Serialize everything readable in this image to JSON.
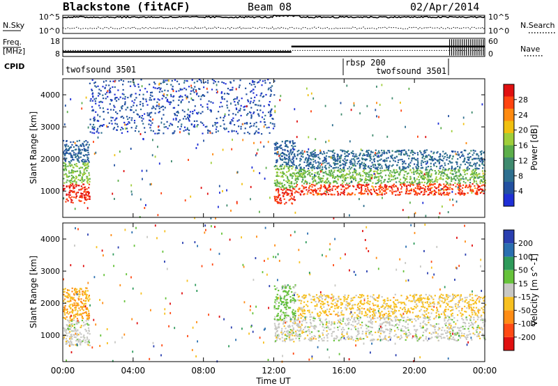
{
  "header": {
    "station": "Blackstone (fitACF)",
    "beam": "Beam 08",
    "date": "02/Apr/2014"
  },
  "left_labels": {
    "nsky": "N.Sky",
    "freq_line1": "Freq.",
    "freq_line2": "[MHz]",
    "cpid": "CPID"
  },
  "right_labels": {
    "nsearch": "N.Search",
    "nave": "Nave"
  },
  "strip_ticks": {
    "noise_left_top": "10^5",
    "noise_left_bottom": "10^0",
    "noise_right_top": "10^5",
    "noise_right_bottom": "10^0",
    "freq_left_top": "18",
    "freq_left_bottom": "8",
    "nave_right_top": "60",
    "nave_right_bottom": "0"
  },
  "cpid_labels": {
    "seg1": "twofsound 3501",
    "seg2": "rbsp 200",
    "seg3": "twofsound 3501"
  },
  "axes": {
    "ylabel": "Slant Range [km]",
    "xlabel": "Time UT",
    "yticks": [
      "1000",
      "2000",
      "3000",
      "4000"
    ],
    "xticks": [
      "00:00",
      "04:00",
      "08:00",
      "12:00",
      "16:00",
      "20:00",
      "00:00"
    ]
  },
  "colorbars": {
    "power": {
      "label": "Power [dB]",
      "ticks": [
        "4",
        "8",
        "12",
        "16",
        "20",
        "24",
        "28"
      ],
      "colors": [
        "#1f2fd6",
        "#2250a0",
        "#2e6f8f",
        "#3f8a6e",
        "#5cae4a",
        "#9fce3a",
        "#f0c010",
        "#ff8a10",
        "#ff4410",
        "#e01010"
      ]
    },
    "velocity": {
      "label": "Velocity [m s^-1]",
      "ticks": [
        "200",
        "100",
        "50",
        "15",
        "-15",
        "-50",
        "-100",
        "-200"
      ],
      "colors": [
        "#2a3fb0",
        "#2a6fb0",
        "#2e9a5a",
        "#66c23a",
        "#c8c8c4",
        "#f7c020",
        "#ff8c14",
        "#ff4a14",
        "#e01010"
      ]
    }
  },
  "chart_data": {
    "type": "heatmap",
    "title": "Blackstone (fitACF)  Beam 08  02/Apr/2014",
    "xlabel": "Time UT",
    "ylabel": "Slant Range [km]",
    "xlim": [
      0,
      24
    ],
    "ylim": [
      180,
      4500
    ],
    "xticks_hours": [
      0,
      4,
      8,
      12,
      16,
      20,
      24
    ],
    "yticks_km": [
      1000,
      2000,
      3000,
      4000
    ],
    "panels": [
      {
        "name": "Power",
        "unit": "dB",
        "range": [
          0,
          30
        ],
        "regions": [
          {
            "t0": 0.0,
            "t1": 1.5,
            "r0": 650,
            "r1": 1250,
            "value": 27
          },
          {
            "t0": 0.0,
            "t1": 1.5,
            "r0": 1250,
            "r1": 1900,
            "value": 15
          },
          {
            "t0": 0.0,
            "t1": 1.5,
            "r0": 1900,
            "r1": 2600,
            "value": 6
          },
          {
            "t0": 12.0,
            "t1": 13.2,
            "r0": 620,
            "r1": 1100,
            "value": 27
          },
          {
            "t0": 12.0,
            "t1": 13.2,
            "r0": 1100,
            "r1": 1800,
            "value": 15
          },
          {
            "t0": 12.0,
            "t1": 13.2,
            "r0": 1800,
            "r1": 2600,
            "value": 6
          },
          {
            "t0": 13.2,
            "t1": 24.0,
            "r0": 900,
            "r1": 1250,
            "value": 26
          },
          {
            "t0": 13.2,
            "t1": 24.0,
            "r0": 1250,
            "r1": 1700,
            "value": 14
          },
          {
            "t0": 13.2,
            "t1": 24.0,
            "r0": 1700,
            "r1": 2300,
            "value": 7
          },
          {
            "t0": 1.5,
            "t1": 12.0,
            "r0": 2800,
            "r1": 4500,
            "value": 4
          }
        ]
      },
      {
        "name": "Velocity",
        "unit": "m s^-1",
        "range": [
          -200,
          200
        ],
        "regions": [
          {
            "t0": 0.0,
            "t1": 1.5,
            "r0": 700,
            "r1": 1500,
            "value": 0
          },
          {
            "t0": 0.0,
            "t1": 1.5,
            "r0": 1500,
            "r1": 2500,
            "value": -60
          },
          {
            "t0": 12.0,
            "t1": 13.2,
            "r0": 800,
            "r1": 1500,
            "value": 0
          },
          {
            "t0": 12.0,
            "t1": 13.2,
            "r0": 1500,
            "r1": 2600,
            "value": 40
          },
          {
            "t0": 13.2,
            "t1": 24.0,
            "r0": 850,
            "r1": 1600,
            "value": 0
          },
          {
            "t0": 13.2,
            "t1": 24.0,
            "r0": 1600,
            "r1": 2300,
            "value": -40
          }
        ]
      }
    ],
    "strips": {
      "noise": {
        "ylim_log10": [
          0,
          5
        ]
      },
      "frequency_mhz": [
        {
          "t0": 0.0,
          "t1": 13.0,
          "value": 10.5
        },
        {
          "t0": 13.0,
          "t1": 24.0,
          "value": 13.5
        }
      ],
      "nave_ylim": [
        0,
        60
      ],
      "cpid_segments": [
        {
          "t0": 0.0,
          "t1": 16.0,
          "label": "twofsound 3501"
        },
        {
          "t0": 16.0,
          "t1": 24.0,
          "label": "rbsp 200 / twofsound 3501"
        }
      ]
    }
  }
}
